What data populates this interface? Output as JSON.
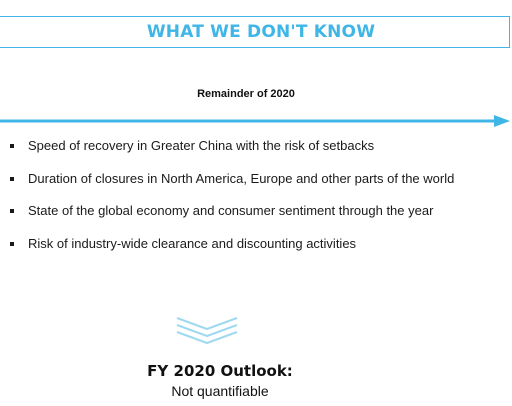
{
  "header": {
    "title": "WHAT WE DON'T KNOW"
  },
  "timeline": {
    "label": "Remainder of 2020"
  },
  "bullets": [
    "Speed of recovery in Greater China with the risk of setbacks",
    "Duration of closures in North America, Europe and other parts of the world",
    "State of the global economy and consumer sentiment through the year",
    "Risk of industry-wide clearance and discounting activities"
  ],
  "outlook": {
    "title": "FY 2020 Outlook:",
    "subtitle": "Not quantifiable"
  },
  "colors": {
    "accent": "#3fb6e6",
    "text": "#111111"
  },
  "icons": {
    "chevron": "chevron-down-icon",
    "arrow": "arrow-right-icon"
  }
}
